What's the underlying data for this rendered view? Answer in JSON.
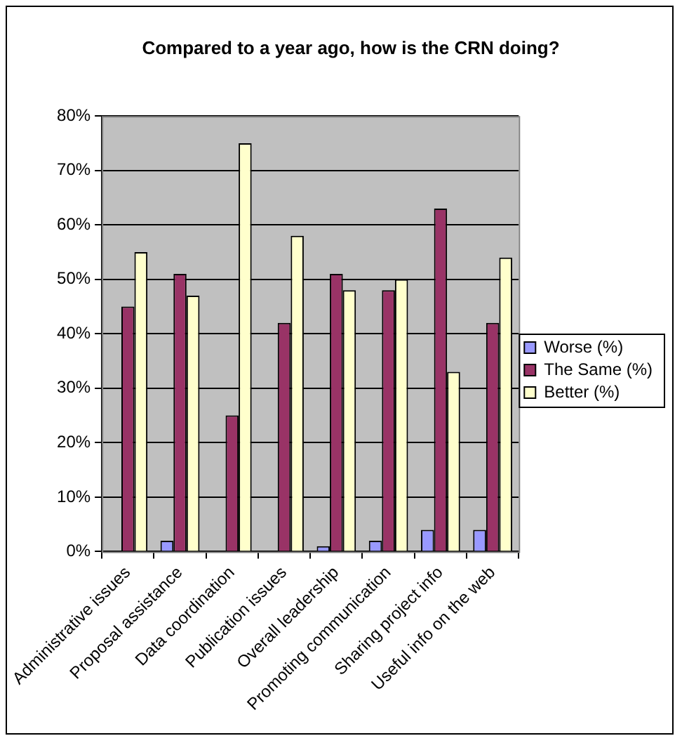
{
  "chart_data": {
    "type": "bar",
    "title": "Compared to a year ago, how is the CRN doing?",
    "categories": [
      "Administrative issues",
      "Proposal assistance",
      "Data coordination",
      "Publication issues",
      "Overall leadership",
      "Promoting communication",
      "Sharing project info",
      "Useful info on the web"
    ],
    "series": [
      {
        "name": "Worse (%)",
        "color": "#9999ff",
        "values": [
          0,
          2,
          0,
          0,
          1,
          2,
          4,
          4
        ]
      },
      {
        "name": "The Same (%)",
        "color": "#993366",
        "values": [
          45,
          51,
          25,
          42,
          51,
          48,
          63,
          42
        ]
      },
      {
        "name": "Better (%)",
        "color": "#ffffcc",
        "values": [
          55,
          47,
          75,
          58,
          48,
          50,
          33,
          54
        ]
      }
    ],
    "ylim": [
      0,
      80
    ],
    "yticks": [
      {
        "value": 0,
        "label": "0%"
      },
      {
        "value": 10,
        "label": "10%"
      },
      {
        "value": 20,
        "label": "20%"
      },
      {
        "value": 30,
        "label": "30%"
      },
      {
        "value": 40,
        "label": "40%"
      },
      {
        "value": 50,
        "label": "50%"
      },
      {
        "value": 60,
        "label": "60%"
      },
      {
        "value": 70,
        "label": "70%"
      },
      {
        "value": 80,
        "label": "80%"
      }
    ],
    "grid": "y",
    "legend": "right"
  }
}
